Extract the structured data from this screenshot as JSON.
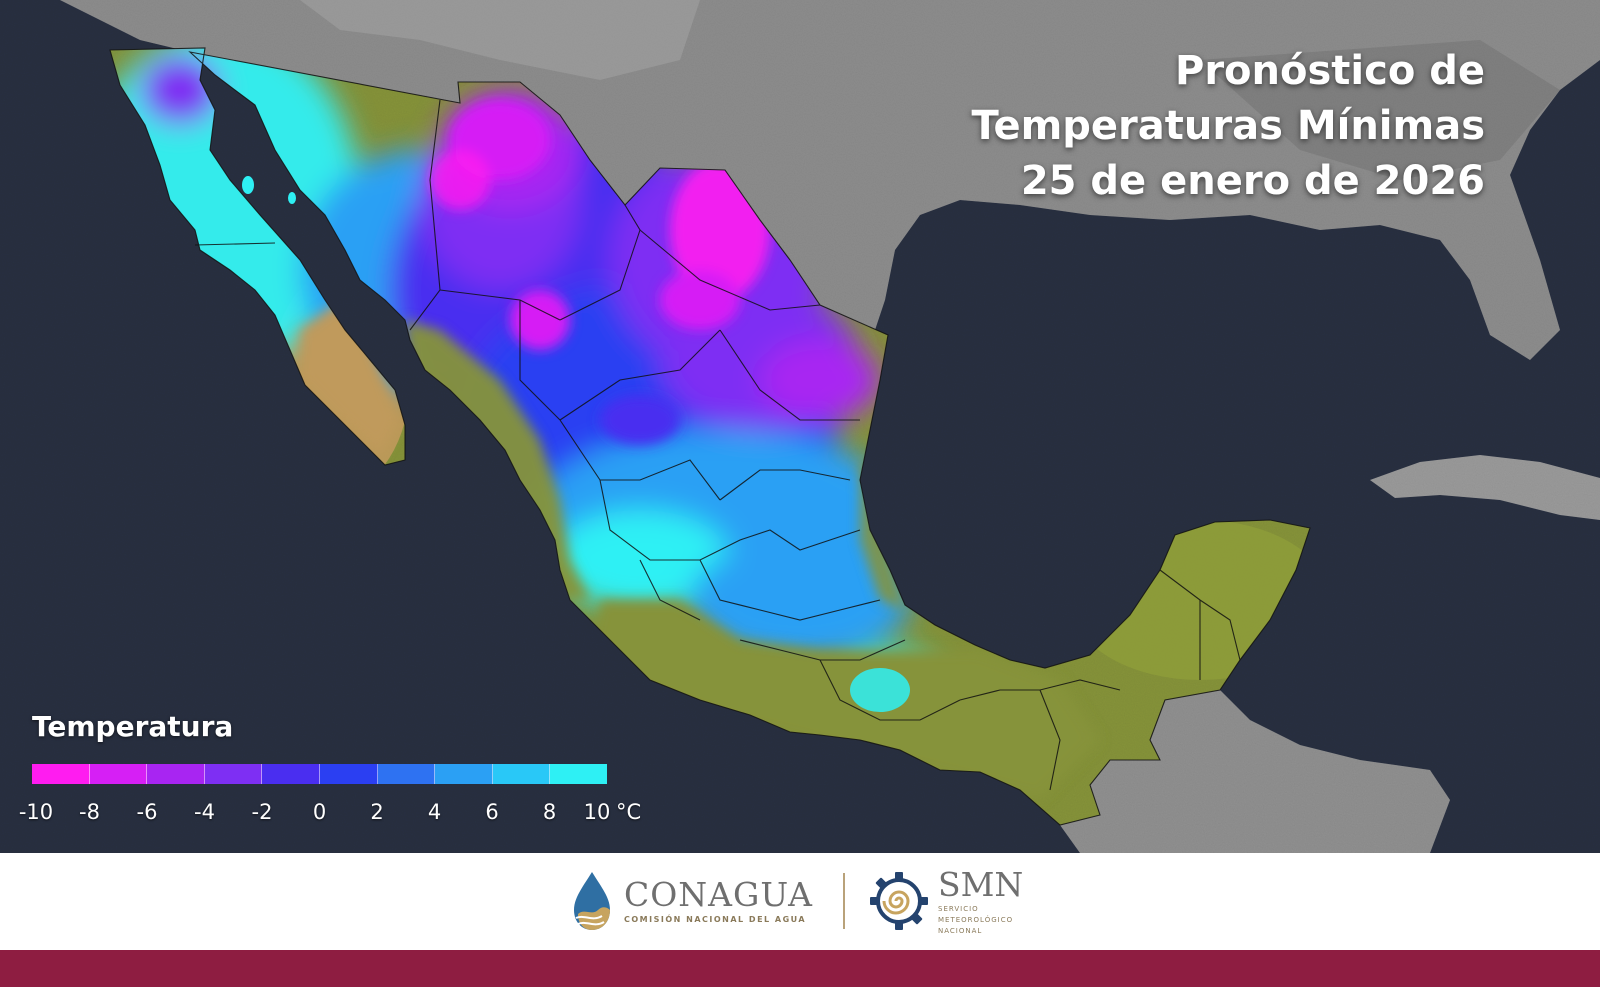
{
  "title": {
    "line1": "Pronóstico de",
    "line2": "Temperaturas Mínimas",
    "line3": "25 de enero de 2026"
  },
  "legend": {
    "title": "Temperatura",
    "unit": "°C",
    "ticks": [
      "-10",
      "-8",
      "-6",
      "-4",
      "-2",
      "0",
      "2",
      "4",
      "6",
      "8",
      "10"
    ],
    "colors": [
      "#ff1cf0",
      "#d61ff5",
      "#a825f2",
      "#7e2ff3",
      "#4a2ef0",
      "#2b3ff2",
      "#2e72f2",
      "#2ba0f4",
      "#29c8f7",
      "#2ef0f4"
    ]
  },
  "map_colors": {
    "ocean": "#232a3a",
    "land_grey": "#8a8a8a",
    "warm_green": "#86933a",
    "warm_tan": "#c09a5c",
    "borders": "#111111"
  },
  "footer": {
    "conagua_name": "CONAGUA",
    "conagua_subtitle": "COMISIÓN NACIONAL DEL AGUA",
    "smn_name": "SMN",
    "smn_sub1": "SERVICIO",
    "smn_sub2": "METEOROLÓGICO",
    "smn_sub3": "NACIONAL",
    "brand_bar_color": "#8e1d41"
  },
  "icons": {
    "conagua_logo": "water-drop-wave-icon",
    "smn_logo": "spiral-gear-icon"
  }
}
